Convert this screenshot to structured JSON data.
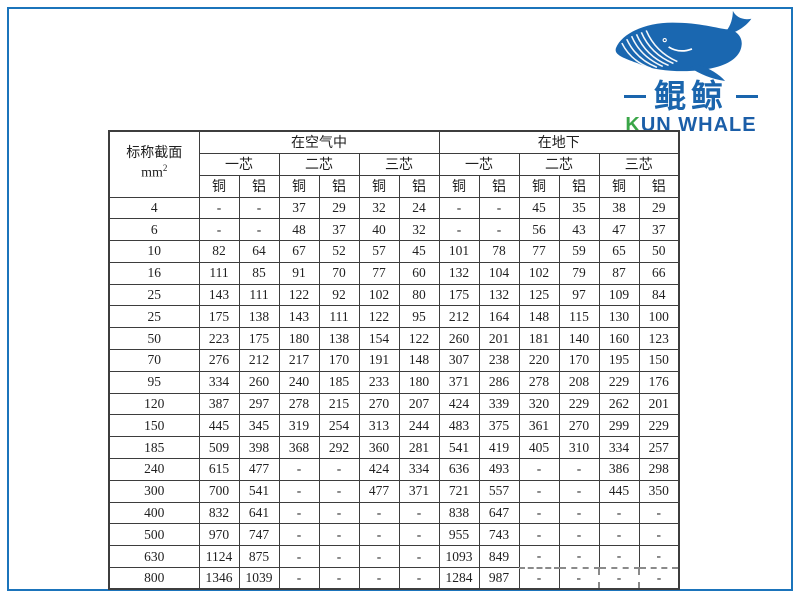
{
  "logo": {
    "cn_name": "鲲鲸",
    "en_first_letter": "K",
    "en_rest": "UN WHALE",
    "whale_color": "#1a67b0",
    "green": "#3aa648",
    "blue": "#1b5ea8"
  },
  "frame_color": "#1b74bb",
  "table": {
    "corner_header": "标称截面",
    "corner_unit_base": "mm",
    "corner_unit_sup": "2",
    "group_headers": [
      "在空气中",
      "在地下"
    ],
    "core_headers": [
      "一芯",
      "二芯",
      "三芯",
      "一芯",
      "二芯",
      "三芯"
    ],
    "material_headers": [
      "铜",
      "铝",
      "铜",
      "铝",
      "铜",
      "铝",
      "铜",
      "铝",
      "铜",
      "铝",
      "铜",
      "铝"
    ],
    "rows": [
      {
        "section": "4",
        "values": [
          "-",
          "-",
          "37",
          "29",
          "32",
          "24",
          "-",
          "-",
          "45",
          "35",
          "38",
          "29"
        ]
      },
      {
        "section": "6",
        "values": [
          "-",
          "-",
          "48",
          "37",
          "40",
          "32",
          "-",
          "-",
          "56",
          "43",
          "47",
          "37"
        ]
      },
      {
        "section": "10",
        "values": [
          "82",
          "64",
          "67",
          "52",
          "57",
          "45",
          "101",
          "78",
          "77",
          "59",
          "65",
          "50"
        ]
      },
      {
        "section": "16",
        "values": [
          "111",
          "85",
          "91",
          "70",
          "77",
          "60",
          "132",
          "104",
          "102",
          "79",
          "87",
          "66"
        ]
      },
      {
        "section": "25",
        "values": [
          "143",
          "111",
          "122",
          "92",
          "102",
          "80",
          "175",
          "132",
          "125",
          "97",
          "109",
          "84"
        ]
      },
      {
        "section": "25",
        "values": [
          "175",
          "138",
          "143",
          "111",
          "122",
          "95",
          "212",
          "164",
          "148",
          "115",
          "130",
          "100"
        ]
      },
      {
        "section": "50",
        "values": [
          "223",
          "175",
          "180",
          "138",
          "154",
          "122",
          "260",
          "201",
          "181",
          "140",
          "160",
          "123"
        ]
      },
      {
        "section": "70",
        "values": [
          "276",
          "212",
          "217",
          "170",
          "191",
          "148",
          "307",
          "238",
          "220",
          "170",
          "195",
          "150"
        ]
      },
      {
        "section": "95",
        "values": [
          "334",
          "260",
          "240",
          "185",
          "233",
          "180",
          "371",
          "286",
          "278",
          "208",
          "229",
          "176"
        ]
      },
      {
        "section": "120",
        "values": [
          "387",
          "297",
          "278",
          "215",
          "270",
          "207",
          "424",
          "339",
          "320",
          "229",
          "262",
          "201"
        ]
      },
      {
        "section": "150",
        "values": [
          "445",
          "345",
          "319",
          "254",
          "313",
          "244",
          "483",
          "375",
          "361",
          "270",
          "299",
          "229"
        ]
      },
      {
        "section": "185",
        "values": [
          "509",
          "398",
          "368",
          "292",
          "360",
          "281",
          "541",
          "419",
          "405",
          "310",
          "334",
          "257"
        ]
      },
      {
        "section": "240",
        "values": [
          "615",
          "477",
          "-",
          "-",
          "424",
          "334",
          "636",
          "493",
          "-",
          "-",
          "386",
          "298"
        ]
      },
      {
        "section": "300",
        "values": [
          "700",
          "541",
          "-",
          "-",
          "477",
          "371",
          "721",
          "557",
          "-",
          "-",
          "445",
          "350"
        ]
      },
      {
        "section": "400",
        "values": [
          "832",
          "641",
          "-",
          "-",
          "-",
          "-",
          "838",
          "647",
          "-",
          "-",
          "-",
          "-"
        ]
      },
      {
        "section": "500",
        "values": [
          "970",
          "747",
          "-",
          "-",
          "-",
          "-",
          "955",
          "743",
          "-",
          "-",
          "-",
          "-"
        ]
      },
      {
        "section": "630",
        "values": [
          "1124",
          "875",
          "-",
          "-",
          "-",
          "-",
          "1093",
          "849",
          "-",
          "-",
          "-",
          "-"
        ]
      },
      {
        "section": "800",
        "values": [
          "1346",
          "1039",
          "-",
          "-",
          "-",
          "-",
          "1284",
          "987",
          "-",
          "-",
          "-",
          "-"
        ]
      }
    ]
  }
}
